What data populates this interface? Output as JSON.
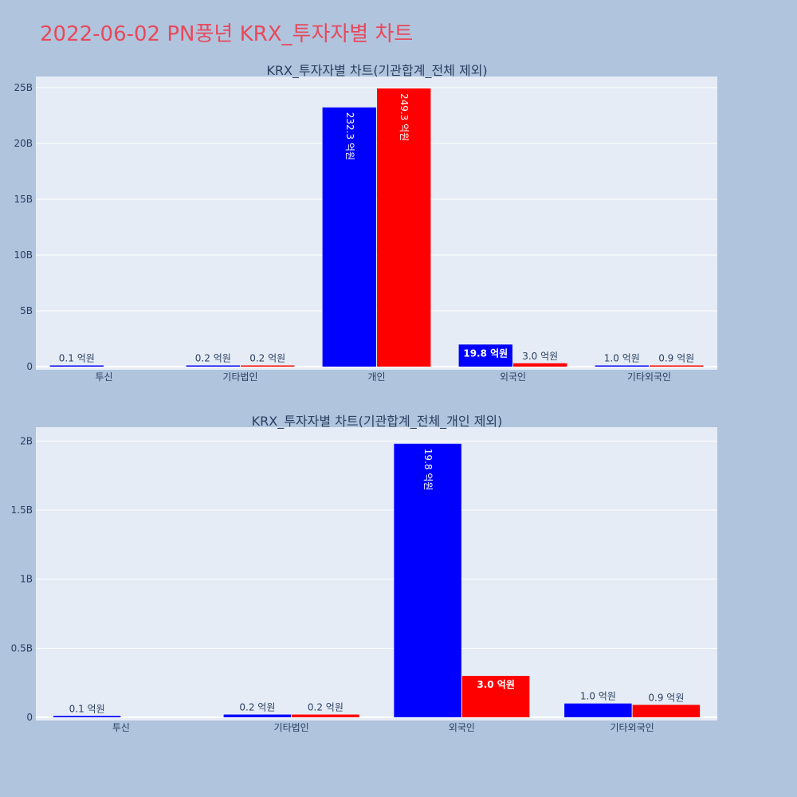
{
  "title": "2022-06-02 PN풍년 KRX_투자자별 차트",
  "colors": {
    "page_bg": "#b0c4de",
    "plot_bg": "#e5ecf6",
    "title": "#e8495a",
    "buy": "#0000ff",
    "sell": "#ff0000"
  },
  "chart_data": [
    {
      "type": "bar",
      "title": "KRX_투자자별 차트(기관합계_전체 제외)",
      "categories": [
        "투신",
        "기타법인",
        "개인",
        "외국인",
        "기타외국인"
      ],
      "series": [
        {
          "color": "#0000ff",
          "values": [
            10000000,
            20000000,
            23230000000,
            1980000000,
            100000000
          ],
          "labels": [
            "0.1 억원",
            "0.2 억원",
            "232.3 억원",
            "19.8 억원",
            "1.0 억원"
          ]
        },
        {
          "color": "#ff0000",
          "values": [
            0,
            20000000,
            24930000000,
            300000000,
            90000000
          ],
          "labels": [
            "",
            "0.2 억원",
            "249.3 억원",
            "3.0 억원",
            "0.9 억원"
          ]
        }
      ],
      "yticks": [
        "0",
        "5B",
        "10B",
        "15B",
        "20B",
        "25B"
      ],
      "ylim": [
        0,
        26000000000
      ],
      "grid": true
    },
    {
      "type": "bar",
      "title": "KRX_투자자별 차트(기관합계_전체_개인 제외)",
      "categories": [
        "투신",
        "기타법인",
        "외국인",
        "기타외국인"
      ],
      "series": [
        {
          "color": "#0000ff",
          "values": [
            10000000,
            20000000,
            1980000000,
            100000000
          ],
          "labels": [
            "0.1 억원",
            "0.2 억원",
            "19.8 억원",
            "1.0 억원"
          ]
        },
        {
          "color": "#ff0000",
          "values": [
            0,
            20000000,
            300000000,
            90000000
          ],
          "labels": [
            "",
            "0.2 억원",
            "3.0 억원",
            "0.9 억원"
          ]
        }
      ],
      "yticks": [
        "0",
        "0.5B",
        "1B",
        "1.5B",
        "2B"
      ],
      "ylim": [
        0,
        2100000000
      ],
      "grid": true
    }
  ]
}
